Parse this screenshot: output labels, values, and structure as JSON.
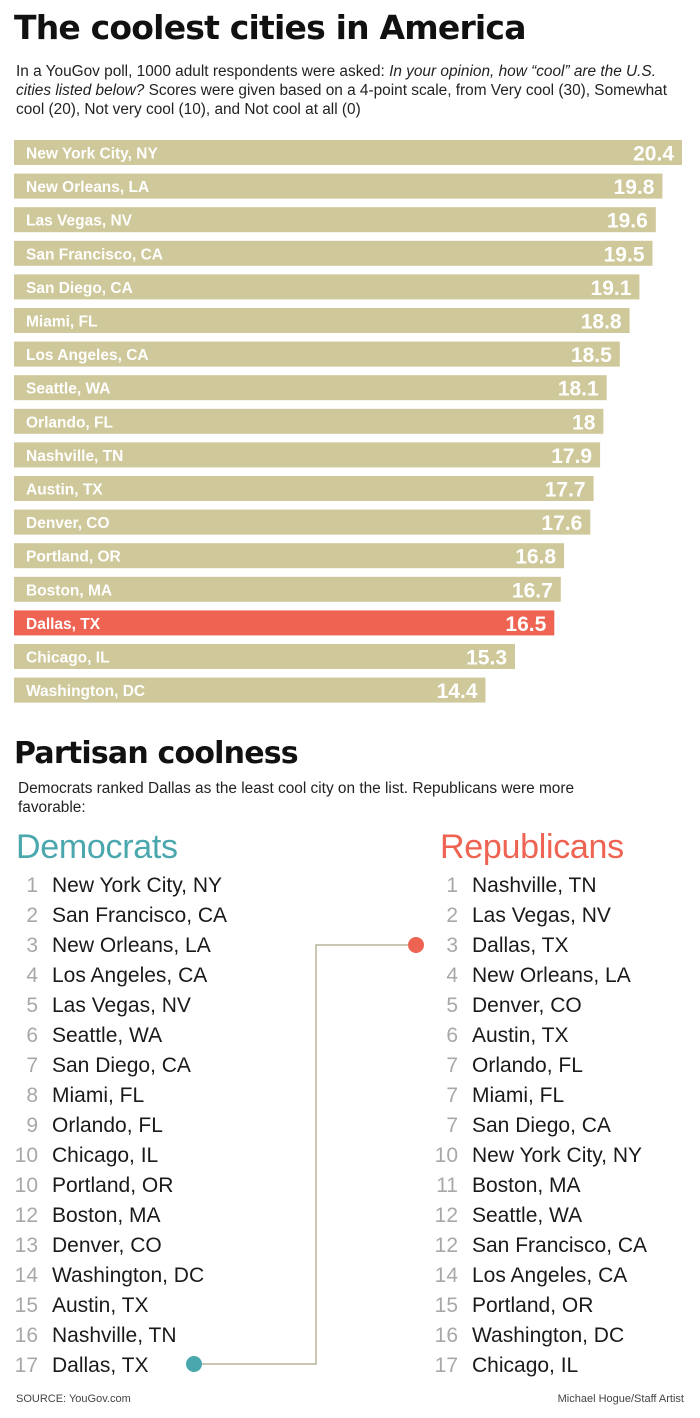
{
  "title": "The coolest cities in America",
  "intro": {
    "lead": "In a YouGov poll, 1000 adult respondents were asked: ",
    "question": "In your opinion, how “cool” are the U.S. cities listed below?",
    "tail": " Scores were given based on a 4-point scale, from Very cool (30), Somewhat cool (20), Not very cool (10), and Not cool at all (0)"
  },
  "chart_data": {
    "type": "bar",
    "orientation": "horizontal",
    "categories": [
      "New York City, NY",
      "New Orleans, LA",
      "Las Vegas, NV",
      "San Francisco, CA",
      "San Diego, CA",
      "Miami, FL",
      "Los Angeles, CA",
      "Seattle, WA",
      "Orlando, FL",
      "Nashville, TN",
      "Austin, TX",
      "Denver, CO",
      "Portland, OR",
      "Boston, MA",
      "Dallas, TX",
      "Chicago, IL",
      "Washington, DC"
    ],
    "values": [
      20.4,
      19.8,
      19.6,
      19.5,
      19.1,
      18.8,
      18.5,
      18.1,
      18,
      17.9,
      17.7,
      17.6,
      16.8,
      16.7,
      16.5,
      15.3,
      14.4
    ],
    "value_labels": [
      "20.4",
      "19.8",
      "19.6",
      "19.5",
      "19.1",
      "18.8",
      "18.5",
      "18.1",
      "18",
      "17.9",
      "17.7",
      "17.6",
      "16.8",
      "16.7",
      "16.5",
      "15.3",
      "14.4"
    ],
    "highlight": "Dallas, TX",
    "colors": {
      "bar": "#cfc89a",
      "highlight": "#ee6352"
    }
  },
  "partisan": {
    "title": "Partisan coolness",
    "intro": "Democrats ranked Dallas as the least cool city on the list. Republicans were more favorable:",
    "democrats": {
      "heading": "Democrats",
      "color": "#4aa7ad",
      "items": [
        {
          "rank": "1",
          "city": "New York City, NY"
        },
        {
          "rank": "2",
          "city": "San Francisco, CA"
        },
        {
          "rank": "3",
          "city": "New Orleans, LA"
        },
        {
          "rank": "4",
          "city": "Los Angeles, CA"
        },
        {
          "rank": "5",
          "city": "Las Vegas, NV"
        },
        {
          "rank": "6",
          "city": "Seattle, WA"
        },
        {
          "rank": "7",
          "city": "San Diego, CA"
        },
        {
          "rank": "8",
          "city": "Miami, FL"
        },
        {
          "rank": "9",
          "city": "Orlando, FL"
        },
        {
          "rank": "10",
          "city": "Chicago, IL"
        },
        {
          "rank": "10",
          "city": "Portland, OR"
        },
        {
          "rank": "12",
          "city": "Boston, MA"
        },
        {
          "rank": "13",
          "city": "Denver, CO"
        },
        {
          "rank": "14",
          "city": "Washington, DC"
        },
        {
          "rank": "15",
          "city": "Austin, TX"
        },
        {
          "rank": "16",
          "city": "Nashville, TN"
        },
        {
          "rank": "17",
          "city": "Dallas, TX"
        }
      ]
    },
    "republicans": {
      "heading": "Republicans",
      "color": "#ee6352",
      "items": [
        {
          "rank": "1",
          "city": "Nashville, TN"
        },
        {
          "rank": "2",
          "city": "Las Vegas, NV"
        },
        {
          "rank": "3",
          "city": "Dallas, TX"
        },
        {
          "rank": "4",
          "city": "New Orleans, LA"
        },
        {
          "rank": "5",
          "city": "Denver, CO"
        },
        {
          "rank": "6",
          "city": "Austin, TX"
        },
        {
          "rank": "7",
          "city": "Orlando, FL"
        },
        {
          "rank": "7",
          "city": "Miami, FL"
        },
        {
          "rank": "7",
          "city": "San Diego, CA"
        },
        {
          "rank": "10",
          "city": "New York City, NY"
        },
        {
          "rank": "11",
          "city": "Boston, MA"
        },
        {
          "rank": "12",
          "city": "Seattle, WA"
        },
        {
          "rank": "12",
          "city": "San Francisco, CA"
        },
        {
          "rank": "14",
          "city": "Los Angeles, CA"
        },
        {
          "rank": "15",
          "city": "Portland, OR"
        },
        {
          "rank": "16",
          "city": "Washington, DC"
        },
        {
          "rank": "17",
          "city": "Chicago, IL"
        }
      ]
    },
    "connector_color": "#b7b39a"
  },
  "source": "SOURCE: YouGov.com",
  "credit": "Michael Hogue/Staff Artist"
}
